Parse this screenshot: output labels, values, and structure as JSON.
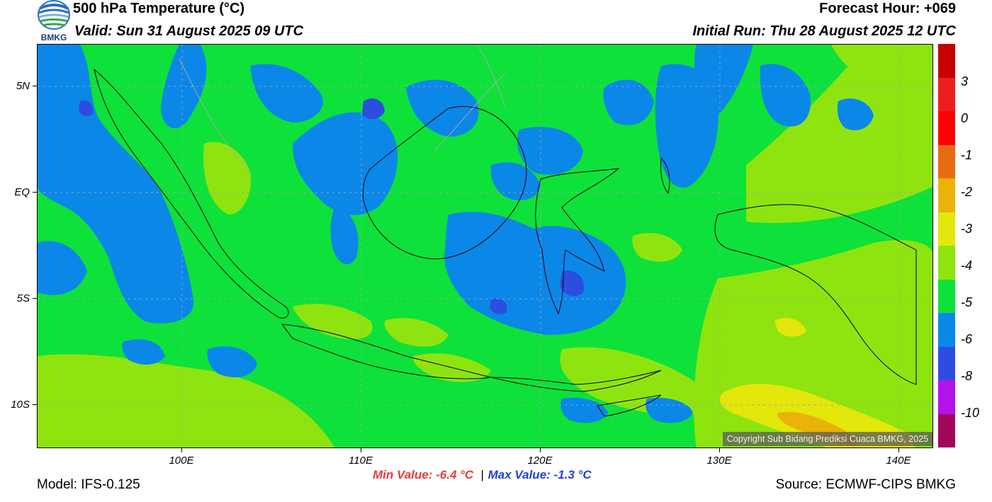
{
  "header": {
    "title": "500 hPa Temperature (°C)",
    "valid": "Valid: Sun 31 August 2025 09 UTC",
    "forecast_hour": "Forecast Hour: +069",
    "initial_run": "Initial Run: Thu 28 August 2025 12 UTC",
    "logo_text": "BMKG"
  },
  "map": {
    "lat_labels": [
      "5N",
      "EQ",
      "5S",
      "10S"
    ],
    "lon_labels": [
      "100E",
      "110E",
      "120E",
      "130E",
      "140E"
    ],
    "copyright": "Copyright Sub Bidang Prediksi Cuaca BMKG, 2025"
  },
  "colorbar": {
    "labels": [
      "3",
      "0",
      "-1",
      "-2",
      "-3",
      "-4",
      "-5",
      "-6",
      "-8",
      "-10"
    ],
    "colors": [
      "#c60000",
      "#ec1f1f",
      "#ff0000",
      "#ea6b0f",
      "#ebb20a",
      "#e3e70b",
      "#8fe40f",
      "#0ee13a",
      "#0b87e8",
      "#2d4de0",
      "#b212ec",
      "#a2085a"
    ]
  },
  "stats": {
    "min": "Min Value: -6.4 °C",
    "separator": "|",
    "max": "Max Value: -1.3 °C"
  },
  "footer": {
    "model": "Model: IFS-0.125",
    "source": "Source: ECMWF-CIPS BMKG"
  }
}
